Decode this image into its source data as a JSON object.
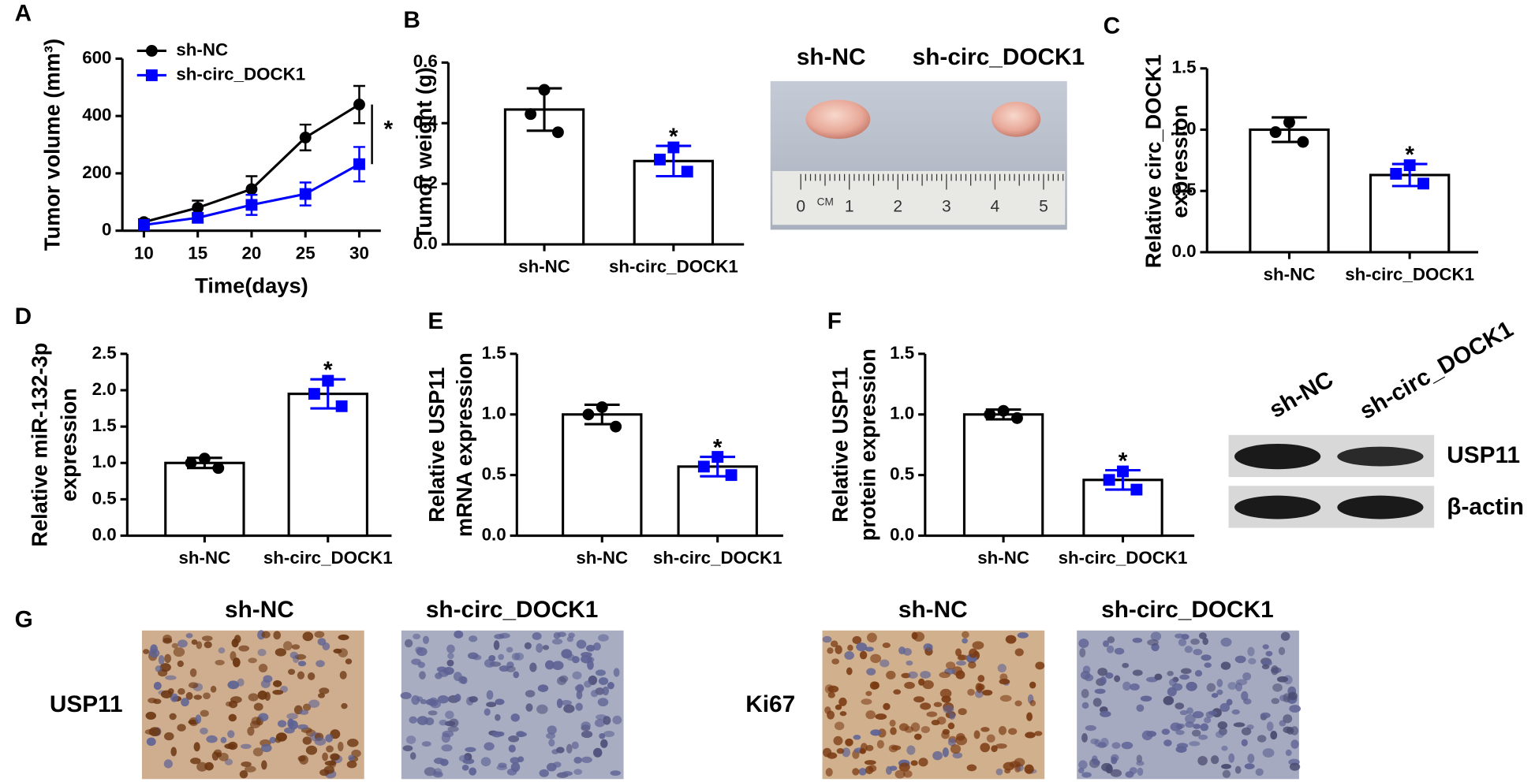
{
  "panel_labels": [
    "A",
    "B",
    "C",
    "D",
    "E",
    "F",
    "G"
  ],
  "chart_data": [
    {
      "type": "line",
      "x": [
        10,
        15,
        20,
        25,
        30
      ],
      "xlim": [
        8,
        32
      ],
      "xticks": [
        10,
        15,
        20,
        25,
        30
      ],
      "ylim": [
        0,
        600
      ],
      "yticks": [
        0,
        200,
        400,
        600
      ],
      "xlabel": "Time(days)",
      "ylabel": [
        "Tumor volume (mm³)"
      ],
      "legend": "upper left",
      "significance": "*",
      "series": [
        {
          "name": "sh-NC",
          "color": "#000000",
          "marker": "circle",
          "values": [
            30,
            80,
            145,
            325,
            440
          ],
          "errors": [
            10,
            25,
            45,
            45,
            65
          ]
        },
        {
          "name": "sh-circ_DOCK1",
          "color": "#0000ff",
          "marker": "square",
          "values": [
            20,
            45,
            90,
            128,
            232
          ],
          "errors": [
            8,
            15,
            35,
            40,
            60
          ]
        }
      ]
    },
    {
      "type": "bar",
      "categories": [
        "sh-NC",
        "sh-circ_DOCK1"
      ],
      "values": [
        0.445,
        0.275
      ],
      "errors": [
        0.07,
        0.05
      ],
      "points": [
        [
          0.51,
          0.43,
          0.37
        ],
        [
          0.32,
          0.28,
          0.24
        ]
      ],
      "point_colors": [
        "#000000",
        "#0000ff"
      ],
      "ylim": [
        0,
        0.6
      ],
      "yticks": [
        {
          "value": 0,
          "label": "0.0"
        },
        0.2,
        0.4,
        0.6
      ],
      "ylabel": [
        "Tumor weight (g)"
      ],
      "significance": "*"
    },
    {
      "type": "bar",
      "categories": [
        "sh-NC",
        "sh-circ_DOCK1"
      ],
      "values": [
        1.0,
        0.63
      ],
      "errors": [
        0.1,
        0.09
      ],
      "points": [
        [
          1.06,
          0.98,
          0.9
        ],
        [
          0.71,
          0.64,
          0.56
        ]
      ],
      "point_colors": [
        "#000000",
        "#0000ff"
      ],
      "ylim": [
        0,
        1.5
      ],
      "yticks": [
        {
          "value": 0,
          "label": "0.0"
        },
        0.5,
        {
          "value": 1,
          "label": "1.0"
        },
        1.5
      ],
      "ylabel": [
        "Relative circ_DOCK1",
        "expression"
      ],
      "significance": "*"
    },
    {
      "type": "bar",
      "categories": [
        "sh-NC",
        "sh-circ_DOCK1"
      ],
      "values": [
        1.0,
        1.95
      ],
      "errors": [
        0.07,
        0.2
      ],
      "points": [
        [
          1.06,
          1.0,
          0.93
        ],
        [
          2.13,
          1.95,
          1.78
        ]
      ],
      "point_colors": [
        "#000000",
        "#0000ff"
      ],
      "ylim": [
        0,
        2.5
      ],
      "yticks": [
        {
          "value": 0,
          "label": "0.0"
        },
        0.5,
        {
          "value": 1,
          "label": "1.0"
        },
        1.5,
        {
          "value": 2,
          "label": "2.0"
        },
        2.5
      ],
      "ylabel": [
        "Relative miR-132-3p",
        "expression"
      ],
      "significance": "*"
    },
    {
      "type": "bar",
      "categories": [
        "sh-NC",
        "sh-circ_DOCK1"
      ],
      "values": [
        1.0,
        0.57
      ],
      "errors": [
        0.08,
        0.08
      ],
      "points": [
        [
          1.06,
          1.0,
          0.9
        ],
        [
          0.65,
          0.57,
          0.5
        ]
      ],
      "point_colors": [
        "#000000",
        "#0000ff"
      ],
      "ylim": [
        0,
        1.5
      ],
      "yticks": [
        {
          "value": 0,
          "label": "0.0"
        },
        0.5,
        {
          "value": 1,
          "label": "1.0"
        },
        1.5
      ],
      "ylabel": [
        "Relative USP11",
        "mRNA expression"
      ],
      "significance": "*"
    },
    {
      "type": "bar",
      "categories": [
        "sh-NC",
        "sh-circ_DOCK1"
      ],
      "values": [
        1.0,
        0.46
      ],
      "errors": [
        0.04,
        0.08
      ],
      "points": [
        [
          1.03,
          1.0,
          0.97
        ],
        [
          0.53,
          0.46,
          0.38
        ]
      ],
      "point_colors": [
        "#000000",
        "#0000ff"
      ],
      "ylim": [
        0,
        1.5
      ],
      "yticks": [
        {
          "value": 0,
          "label": "0.0"
        },
        0.5,
        {
          "value": 1,
          "label": "1.0"
        },
        1.5
      ],
      "ylabel": [
        "Relative USP11",
        "protein expression"
      ],
      "significance": "*"
    }
  ],
  "photo_B": {
    "labels": [
      "sh-NC",
      "sh-circ_DOCK1"
    ],
    "ruler_unit": "CM",
    "ruler_labels": [
      "0",
      "1",
      "2",
      "3",
      "4",
      "5"
    ]
  },
  "blot_F": {
    "columns": [
      "sh-NC",
      "sh-circ_DOCK1"
    ],
    "rows": [
      "USP11",
      "β-actin"
    ]
  },
  "ihc_G": {
    "columns": [
      "sh-NC",
      "sh-circ_DOCK1",
      "sh-NC",
      "sh-circ_DOCK1"
    ],
    "rows": [
      "USP11",
      "Ki67"
    ]
  }
}
